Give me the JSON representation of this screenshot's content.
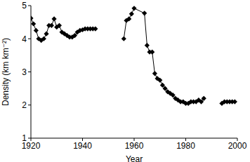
{
  "chart_data": {
    "type": "line",
    "x_label": "Year",
    "y_label": "Density (km km⁻²)",
    "x": [
      1920,
      1921,
      1922,
      1923,
      1924,
      1925,
      1926,
      1927,
      1928,
      1929,
      1930,
      1931,
      1932,
      1933,
      1934,
      1935,
      1936,
      1937,
      1938,
      1939,
      1940,
      1941,
      1942,
      1943,
      1944,
      1945,
      1950,
      1956,
      1957,
      1958,
      1959,
      1960,
      1964,
      1965,
      1966,
      1967,
      1968,
      1969,
      1970,
      1971,
      1972,
      1973,
      1974,
      1975,
      1976,
      1977,
      1978,
      1979,
      1980,
      1981,
      1982,
      1983,
      1984,
      1985,
      1986,
      1987,
      1990,
      1994,
      1995,
      1996,
      1997,
      1998,
      1999
    ],
    "series": [
      {
        "name": "Density",
        "color": "#000000",
        "marker": "diamond",
        "values": [
          4.62,
          4.45,
          4.25,
          4.0,
          3.95,
          4.0,
          4.15,
          4.4,
          4.4,
          4.6,
          4.35,
          4.4,
          4.2,
          4.15,
          4.1,
          4.05,
          4.05,
          4.1,
          4.2,
          4.25,
          4.27,
          4.3,
          4.3,
          4.3,
          4.3,
          4.3,
          null,
          4.0,
          4.55,
          4.6,
          4.75,
          4.92,
          4.77,
          3.8,
          3.6,
          3.6,
          2.95,
          2.8,
          2.75,
          2.6,
          2.5,
          2.4,
          2.35,
          2.3,
          2.2,
          2.15,
          2.1,
          2.1,
          2.05,
          2.05,
          2.1,
          2.1,
          2.1,
          2.15,
          2.1,
          2.2,
          null,
          2.05,
          2.1,
          2.1,
          2.1,
          2.1,
          2.1
        ]
      }
    ],
    "xlim": [
      1920,
      2000
    ],
    "xticks": [
      1920,
      1940,
      1960,
      1980,
      2000
    ],
    "ylim": [
      1,
      5
    ],
    "yticks": [
      1,
      2,
      3,
      4,
      5
    ],
    "grid": false
  }
}
